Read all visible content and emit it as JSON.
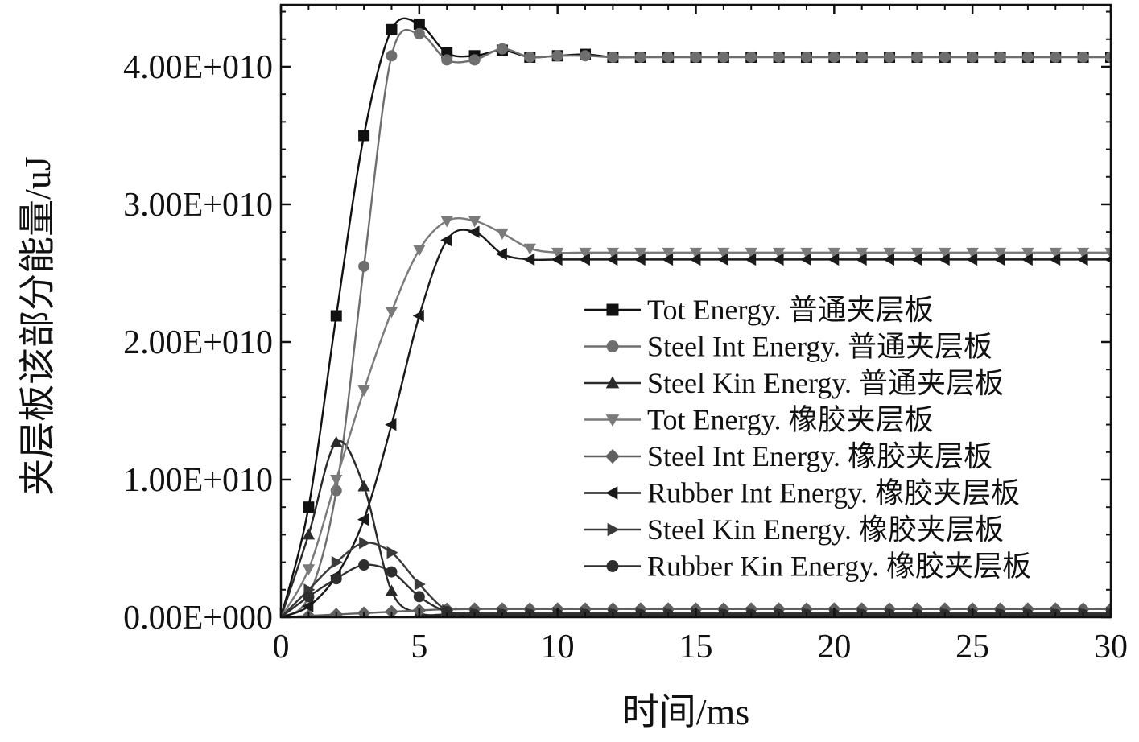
{
  "chart_data": {
    "type": "line",
    "title": "",
    "xlabel": "时间/ms",
    "ylabel": "夹层板该部分能量/uJ",
    "xlim": [
      0,
      30
    ],
    "ylim": [
      0,
      44500000000.0
    ],
    "xticks": [
      0,
      5,
      10,
      15,
      20,
      25,
      30
    ],
    "xtick_labels": [
      "0",
      "5",
      "10",
      "15",
      "20",
      "25",
      "30"
    ],
    "yticks": [
      0,
      10000000000.0,
      20000000000.0,
      30000000000.0,
      40000000000.0
    ],
    "ytick_labels": [
      "0.00E+000",
      "1.00E+010",
      "2.00E+010",
      "3.00E+010",
      "4.00E+010"
    ],
    "grid": false,
    "legend_position": "right",
    "x": [
      0,
      1,
      2,
      3,
      4,
      5,
      6,
      7,
      8,
      9,
      10,
      11,
      12,
      13,
      14,
      15,
      16,
      17,
      18,
      19,
      20,
      21,
      22,
      23,
      24,
      25,
      26,
      27,
      28,
      29,
      30
    ],
    "series": [
      {
        "name": "Tot Energy. 普通夹层板",
        "marker": "square",
        "color": "#111111",
        "values": [
          0,
          8000000000.0,
          21900000000.0,
          35000000000.0,
          42700000000.0,
          43100000000.0,
          41000000000.0,
          40800000000.0,
          41200000000.0,
          40700000000.0,
          40800000000.0,
          40900000000.0,
          40700000000.0,
          40700000000.0,
          40700000000.0,
          40700000000.0,
          40700000000.0,
          40700000000.0,
          40700000000.0,
          40700000000.0,
          40700000000.0,
          40700000000.0,
          40700000000.0,
          40700000000.0,
          40700000000.0,
          40700000000.0,
          40700000000.0,
          40700000000.0,
          40700000000.0,
          40700000000.0,
          40700000000.0
        ]
      },
      {
        "name": "Steel Int Energy. 普通夹层板",
        "marker": "circle",
        "color": "#6e6e6e",
        "values": [
          0,
          1500000000.0,
          9200000000.0,
          25500000000.0,
          40800000000.0,
          42400000000.0,
          40500000000.0,
          40500000000.0,
          41300000000.0,
          40700000000.0,
          40800000000.0,
          40800000000.0,
          40700000000.0,
          40700000000.0,
          40700000000.0,
          40700000000.0,
          40700000000.0,
          40700000000.0,
          40700000000.0,
          40700000000.0,
          40700000000.0,
          40700000000.0,
          40700000000.0,
          40700000000.0,
          40700000000.0,
          40700000000.0,
          40700000000.0,
          40700000000.0,
          40700000000.0,
          40700000000.0,
          40700000000.0
        ]
      },
      {
        "name": "Steel Kin Energy. 普通夹层板",
        "marker": "triangle-up",
        "color": "#2a2a2a",
        "values": [
          0,
          6000000000.0,
          12700000000.0,
          9500000000.0,
          1900000000.0,
          300000000.0,
          200000000.0,
          100000000.0,
          100000000.0,
          100000000.0,
          100000000.0,
          100000000.0,
          100000000.0,
          100000000.0,
          100000000.0,
          100000000.0,
          100000000.0,
          100000000.0,
          100000000.0,
          100000000.0,
          100000000.0,
          100000000.0,
          100000000.0,
          100000000.0,
          100000000.0,
          100000000.0,
          100000000.0,
          100000000.0,
          100000000.0,
          100000000.0,
          100000000.0
        ]
      },
      {
        "name": "Tot Energy. 橡胶夹层板",
        "marker": "triangle-down",
        "color": "#7a7a7a",
        "values": [
          0,
          3500000000.0,
          10000000000.0,
          16500000000.0,
          22200000000.0,
          26700000000.0,
          28800000000.0,
          28800000000.0,
          27900000000.0,
          26800000000.0,
          26500000000.0,
          26500000000.0,
          26500000000.0,
          26500000000.0,
          26500000000.0,
          26500000000.0,
          26500000000.0,
          26500000000.0,
          26500000000.0,
          26500000000.0,
          26500000000.0,
          26500000000.0,
          26500000000.0,
          26500000000.0,
          26500000000.0,
          26500000000.0,
          26500000000.0,
          26500000000.0,
          26500000000.0,
          26500000000.0,
          26500000000.0
        ]
      },
      {
        "name": "Steel Int Energy. 橡胶夹层板",
        "marker": "diamond",
        "color": "#606060",
        "values": [
          0,
          100000000.0,
          200000000.0,
          300000000.0,
          400000000.0,
          500000000.0,
          580000000.0,
          600000000.0,
          600000000.0,
          600000000.0,
          600000000.0,
          600000000.0,
          600000000.0,
          600000000.0,
          600000000.0,
          600000000.0,
          600000000.0,
          600000000.0,
          600000000.0,
          600000000.0,
          600000000.0,
          600000000.0,
          600000000.0,
          600000000.0,
          600000000.0,
          600000000.0,
          600000000.0,
          600000000.0,
          600000000.0,
          600000000.0,
          600000000.0
        ]
      },
      {
        "name": "Rubber Int Energy. 橡胶夹层板",
        "marker": "triangle-left",
        "color": "#1a1a1a",
        "values": [
          0,
          800000000.0,
          3000000000.0,
          7100000000.0,
          14000000000.0,
          21900000000.0,
          27400000000.0,
          28000000000.0,
          26400000000.0,
          26000000000.0,
          26000000000.0,
          26000000000.0,
          26000000000.0,
          26000000000.0,
          26000000000.0,
          26000000000.0,
          26000000000.0,
          26000000000.0,
          26000000000.0,
          26000000000.0,
          26000000000.0,
          26000000000.0,
          26000000000.0,
          26000000000.0,
          26000000000.0,
          26000000000.0,
          26000000000.0,
          26000000000.0,
          26000000000.0,
          26000000000.0,
          26000000000.0
        ]
      },
      {
        "name": "Steel Kin Energy. 橡胶夹层板",
        "marker": "triangle-right",
        "color": "#3a3a3a",
        "values": [
          0,
          2000000000.0,
          4000000000.0,
          5400000000.0,
          4700000000.0,
          2400000000.0,
          500000000.0,
          300000000.0,
          300000000.0,
          300000000.0,
          300000000.0,
          300000000.0,
          300000000.0,
          300000000.0,
          300000000.0,
          300000000.0,
          300000000.0,
          300000000.0,
          300000000.0,
          300000000.0,
          300000000.0,
          300000000.0,
          300000000.0,
          300000000.0,
          300000000.0,
          300000000.0,
          300000000.0,
          300000000.0,
          300000000.0,
          300000000.0,
          300000000.0
        ]
      },
      {
        "name": "Rubber Kin Energy. 橡胶夹层板",
        "marker": "circle",
        "color": "#2e2e2e",
        "values": [
          0,
          1500000000.0,
          2800000000.0,
          3800000000.0,
          3300000000.0,
          1500000000.0,
          400000000.0,
          200000000.0,
          200000000.0,
          200000000.0,
          200000000.0,
          200000000.0,
          200000000.0,
          200000000.0,
          200000000.0,
          200000000.0,
          200000000.0,
          200000000.0,
          200000000.0,
          200000000.0,
          200000000.0,
          200000000.0,
          200000000.0,
          200000000.0,
          200000000.0,
          200000000.0,
          200000000.0,
          200000000.0,
          200000000.0,
          200000000.0,
          200000000.0
        ]
      }
    ]
  }
}
